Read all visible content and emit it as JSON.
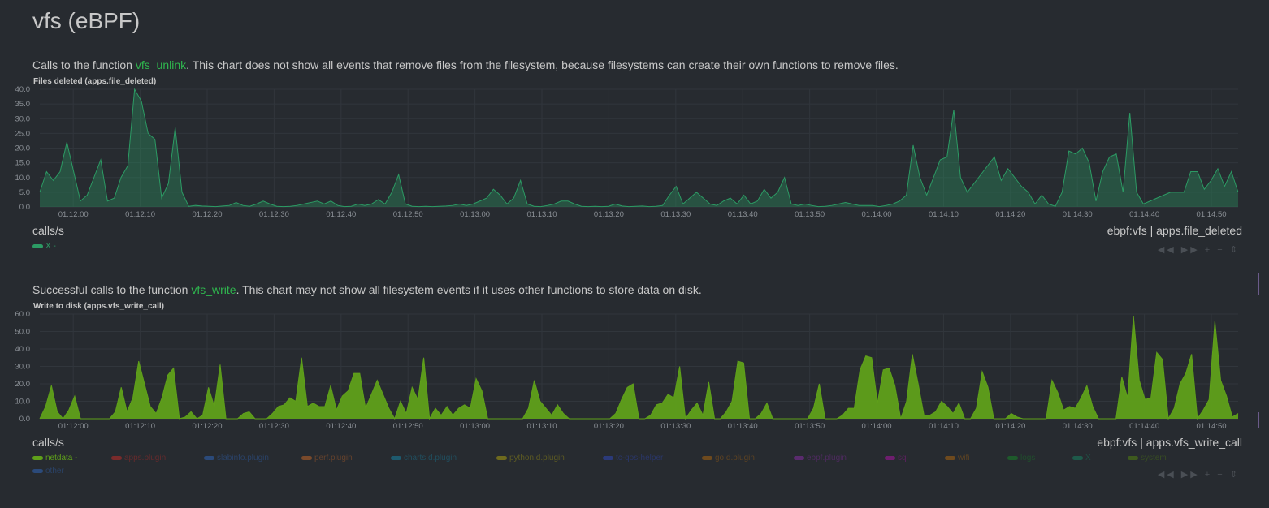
{
  "section": {
    "title": "vfs (eBPF)"
  },
  "charts": [
    {
      "id": "unlink",
      "desc_before": "Calls to the function ",
      "desc_fn": "vfs_unlink",
      "desc_after": ". This chart does not show all events that remove files from the filesystem, because filesystems can create their own functions to remove files.",
      "title": "Files deleted (apps.file_deleted)",
      "units": "calls/s",
      "context": "ebpf:vfs | apps.file_deleted",
      "legend": [
        {
          "label": "X",
          "value": "-",
          "color": "#2c9b64"
        }
      ]
    },
    {
      "id": "write",
      "desc_before": "Successful calls to the function ",
      "desc_fn": "vfs_write",
      "desc_after": ". This chart may not show all filesystem events if it uses other functions to store data on disk.",
      "title": "Write to disk (apps.vfs_write_call)",
      "units": "calls/s",
      "context": "ebpf:vfs | apps.vfs_write_call",
      "legend": [
        {
          "label": "netdata",
          "value": "-",
          "color": "#5fa01a"
        },
        {
          "label": "apps.plugin",
          "color": "#7a2b2b"
        },
        {
          "label": "slabinfo.plugin",
          "color": "#2b4a7a"
        },
        {
          "label": "perf.plugin",
          "color": "#7a4a2b"
        },
        {
          "label": "charts.d.plugin",
          "color": "#1e5a6e"
        },
        {
          "label": "python.d.plugin",
          "color": "#6e6a1e"
        },
        {
          "label": "tc-qos-helper",
          "color": "#2b3a7a"
        },
        {
          "label": "go.d.plugin",
          "color": "#6e4a1e"
        },
        {
          "label": "ebpf.plugin",
          "color": "#5a2b6e"
        },
        {
          "label": "sql",
          "color": "#6e1e6e"
        },
        {
          "label": "wifi",
          "color": "#6e4a1e"
        },
        {
          "label": "logs",
          "color": "#1e5a2b"
        },
        {
          "label": "X",
          "color": "#1e5a4a"
        },
        {
          "label": "system",
          "color": "#3e5a1e"
        },
        {
          "label": "other",
          "color": "#2b4a7a"
        }
      ]
    }
  ],
  "toolbox": {
    "left": "◀◀",
    "right": "▶▶",
    "plus": "+",
    "minus": "−",
    "resize": "⇕"
  },
  "chart_data": [
    {
      "type": "area",
      "title": "Files deleted (apps.file_deleted)",
      "ylabel": "calls/s",
      "ylim": [
        0,
        40
      ],
      "yticks": [
        "0.0",
        "5.0",
        "10.0",
        "15.0",
        "20.0",
        "25.0",
        "30.0",
        "35.0",
        "40.0"
      ],
      "x_start": "01:11:55",
      "x_end": "01:14:54",
      "xticks": [
        "01:12:00",
        "01:12:10",
        "01:12:20",
        "01:12:30",
        "01:12:40",
        "01:12:50",
        "01:13:00",
        "01:13:10",
        "01:13:20",
        "01:13:30",
        "01:13:40",
        "01:13:50",
        "01:14:00",
        "01:14:10",
        "01:14:20",
        "01:14:30",
        "01:14:40",
        "01:14:50"
      ],
      "grid": true,
      "series": [
        {
          "name": "X",
          "color": "#2c9b64",
          "values": [
            5,
            12,
            9,
            12,
            22,
            12,
            2,
            4,
            10,
            16,
            2,
            3,
            10,
            14,
            40,
            36,
            25,
            23,
            3,
            8,
            27,
            5,
            0.2,
            0.5,
            0.3,
            0.2,
            0.1,
            0.3,
            0.5,
            1.5,
            0.5,
            0.2,
            1,
            2,
            1,
            0.2,
            0.1,
            0.2,
            0.5,
            1,
            1.5,
            2,
            1,
            2,
            0.5,
            0.1,
            0.2,
            1,
            0.5,
            1,
            2.5,
            1,
            5,
            11,
            1,
            0.2,
            0.1,
            0.2,
            0.1,
            0.2,
            0.3,
            0.5,
            1,
            0.5,
            1,
            2,
            3,
            6,
            4,
            1,
            3,
            9,
            1,
            0.2,
            0.1,
            0.5,
            1,
            2,
            2,
            1,
            0.2,
            0.1,
            0.2,
            0.1,
            0.2,
            1,
            0.3,
            0.1,
            0.2,
            0.3,
            0.1,
            0.2,
            0.5,
            4,
            7,
            1,
            3,
            5,
            3,
            1,
            0.5,
            2,
            3,
            1,
            4,
            1,
            2,
            6,
            3,
            5,
            10,
            1,
            0.5,
            1,
            0.5,
            0.1,
            0.2,
            0.5,
            1,
            1.5,
            1,
            0.5,
            0.5,
            0.5,
            0.1,
            0.5,
            1,
            2,
            4,
            21,
            10,
            4,
            10,
            16,
            17,
            33,
            10,
            5,
            8,
            11,
            14,
            17,
            9,
            13,
            10,
            7,
            5,
            1,
            4,
            1,
            0.2,
            5,
            19,
            18,
            20,
            15,
            2,
            12,
            17,
            18,
            5,
            32,
            5,
            1,
            2,
            3,
            4,
            5,
            5,
            5,
            12,
            12,
            6,
            9,
            13,
            7,
            12,
            5
          ]
        }
      ]
    },
    {
      "type": "area",
      "title": "Write to disk (apps.vfs_write_call)",
      "ylabel": "calls/s",
      "ylim": [
        0,
        60
      ],
      "yticks": [
        "0.0",
        "10.0",
        "20.0",
        "30.0",
        "40.0",
        "50.0",
        "60.0"
      ],
      "x_start": "01:11:55",
      "x_end": "01:14:54",
      "xticks": [
        "01:12:00",
        "01:12:10",
        "01:12:20",
        "01:12:30",
        "01:12:40",
        "01:12:50",
        "01:13:00",
        "01:13:10",
        "01:13:20",
        "01:13:30",
        "01:13:40",
        "01:13:50",
        "01:14:00",
        "01:14:10",
        "01:14:20",
        "01:14:30",
        "01:14:40",
        "01:14:50"
      ],
      "grid": true,
      "series": [
        {
          "name": "netdata",
          "color": "#5fa01a",
          "values": [
            0,
            7,
            19,
            4,
            0,
            5,
            13,
            0,
            0,
            0,
            0,
            0,
            0,
            4,
            18,
            4,
            12,
            33,
            20,
            7,
            3,
            12,
            25,
            29,
            0,
            1,
            4,
            0,
            2,
            18,
            7,
            31,
            0,
            0,
            0,
            3,
            4,
            0,
            0,
            0,
            3,
            7,
            8,
            12,
            10,
            35,
            7,
            9,
            7,
            7,
            19,
            5,
            13,
            16,
            26,
            26,
            6,
            14,
            22,
            14,
            6,
            0,
            10,
            3,
            18,
            11,
            35,
            0,
            6,
            2,
            7,
            2,
            6,
            8,
            6,
            23,
            16,
            0,
            0,
            0,
            0,
            0,
            0,
            0,
            6,
            22,
            10,
            6,
            2,
            8,
            3,
            0,
            0,
            0,
            0,
            0,
            0,
            0,
            0,
            3,
            11,
            18,
            20,
            0,
            0,
            2,
            8,
            9,
            14,
            12,
            30,
            0,
            5,
            9,
            2,
            21,
            0,
            0,
            4,
            10,
            33,
            32,
            0,
            0,
            3,
            9,
            0,
            0,
            0,
            0,
            0,
            0,
            0,
            6,
            20,
            0,
            0,
            0,
            2,
            6,
            6,
            28,
            36,
            35,
            9,
            28,
            29,
            19,
            0,
            10,
            37,
            20,
            2,
            2,
            4,
            10,
            7,
            3,
            9,
            0,
            0,
            6,
            27,
            18,
            0,
            0,
            0,
            3,
            1,
            0,
            0,
            0,
            0,
            0,
            22,
            15,
            5,
            7,
            6,
            12,
            19,
            7,
            0,
            0,
            0,
            0,
            24,
            12,
            59,
            22,
            11,
            12,
            38,
            34,
            0,
            6,
            20,
            26,
            37,
            0,
            5,
            11,
            56,
            22,
            13,
            1,
            3
          ]
        }
      ]
    }
  ]
}
